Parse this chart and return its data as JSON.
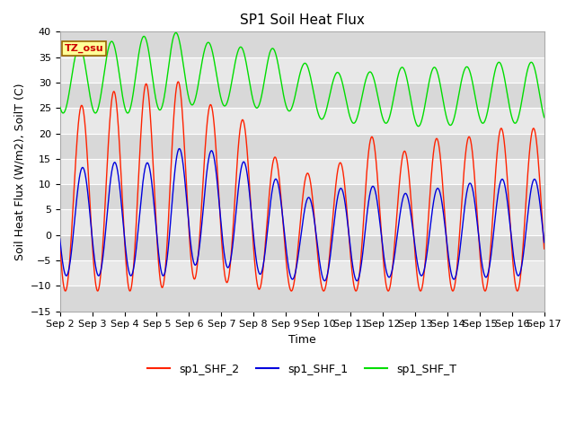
{
  "title": "SP1 Soil Heat Flux",
  "xlabel": "Time",
  "ylabel": "Soil Heat Flux (W/m2), SoilT (C)",
  "ylim": [
    -15,
    40
  ],
  "bg_color": "#e8e8e8",
  "fig_color": "#ffffff",
  "tz_label": "TZ_osu",
  "legend_entries": [
    "sp1_SHF_2",
    "sp1_SHF_1",
    "sp1_SHF_T"
  ],
  "line_colors": [
    "#ff2200",
    "#0000dd",
    "#00dd00"
  ],
  "grid_color": "#ffffff",
  "stripe_color": "#d8d8d8",
  "title_fontsize": 11,
  "axis_label_fontsize": 9,
  "tick_fontsize": 8,
  "legend_fontsize": 9,
  "x_tick_labels": [
    "Sep 2",
    "Sep 3",
    "Sep 4",
    "Sep 5",
    "Sep 6",
    "Sep 7",
    "Sep 8",
    "Sep 9",
    "Sep 10",
    "Sep 11",
    "Sep 12",
    "Sep 13",
    "Sep 14",
    "Sep 15",
    "Sep 16",
    "Sep 17"
  ]
}
